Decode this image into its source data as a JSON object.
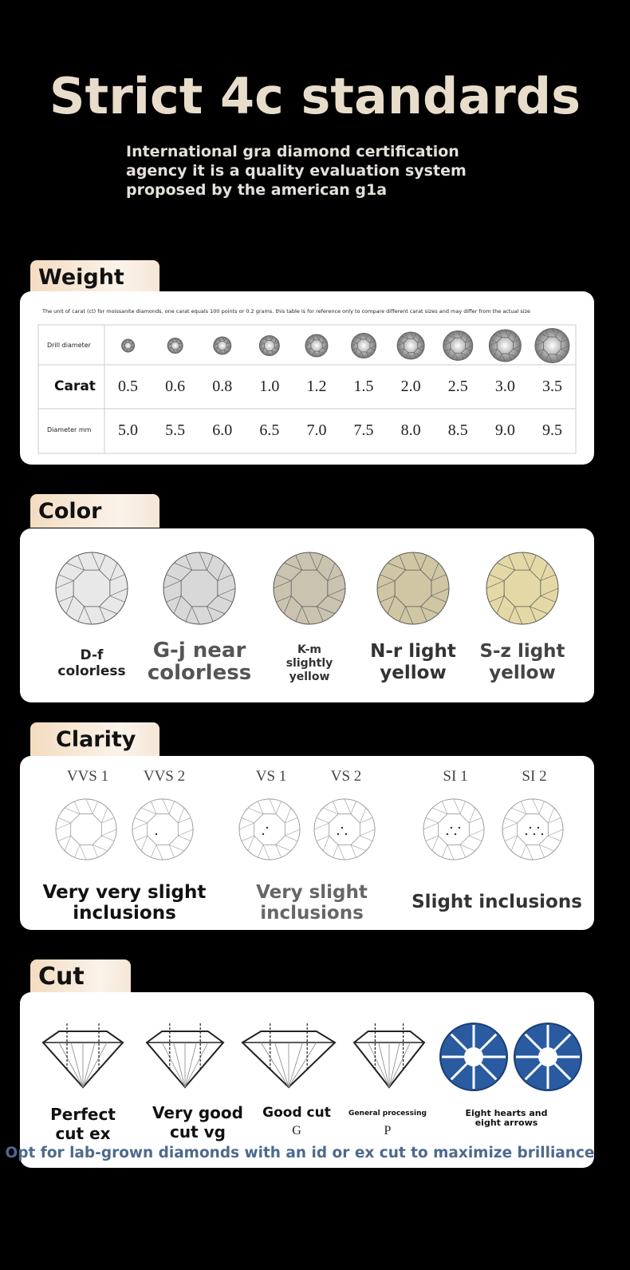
{
  "header": {
    "title": "Strict 4c standards",
    "subtitle": [
      "International gra diamond certification",
      "agency it is a quality evaluation system",
      "proposed by the american g1a"
    ]
  },
  "weight": {
    "label": "Weight",
    "note": "The unit of carat (ct) for moissanite diamonds. one carat equals 100 points or 0.2 grams. this table is for reference only to compare different carat sizes and may differ from the actual size",
    "drill_label": "Drill diameter",
    "carat_label": "Carat",
    "carats": [
      "0.5",
      "0.6",
      "0.8",
      "1.0",
      "1.2",
      "1.5",
      "2.0",
      "2.5",
      "3.0",
      "3.5"
    ],
    "diameter_label": "Diameter mm",
    "diameters": [
      "5.0",
      "5.5",
      "6.0",
      "6.5",
      "7.0",
      "7.5",
      "8.0",
      "8.5",
      "9.0",
      "9.5"
    ]
  },
  "color": {
    "label": "Color",
    "items": [
      {
        "lines": [
          "D-f",
          "colorless"
        ]
      },
      {
        "lines": [
          "G-j near",
          "colorless"
        ]
      },
      {
        "lines": [
          "K-m",
          "slightly",
          "yellow"
        ]
      },
      {
        "lines": [
          "N-r light",
          "yellow"
        ]
      },
      {
        "lines": [
          "S-z light",
          "yellow"
        ]
      }
    ]
  },
  "clarity": {
    "label": "Clarity",
    "grades": [
      "VVS 1",
      "VVS 2",
      "VS 1",
      "VS 2",
      "SI 1",
      "SI 2"
    ],
    "groups": [
      {
        "lines": [
          "Very very slight",
          "inclusions"
        ]
      },
      {
        "lines": [
          "Very slight",
          "inclusions"
        ]
      },
      {
        "lines": [
          "Slight inclusions"
        ]
      }
    ]
  },
  "cut": {
    "label": "Cut",
    "items": [
      {
        "lines": [
          "Perfect",
          "cut ex"
        ]
      },
      {
        "lines": [
          "Very good",
          "cut vg"
        ]
      },
      {
        "lines": [
          "Good cut"
        ],
        "grade": "G"
      },
      {
        "lines": [
          "General processing"
        ],
        "grade": "P"
      },
      {
        "lines": [
          "Eight hearts and",
          "eight arrows"
        ]
      }
    ],
    "note": "Opt for lab-grown diamonds with an id or ex cut to maximize brilliance"
  }
}
